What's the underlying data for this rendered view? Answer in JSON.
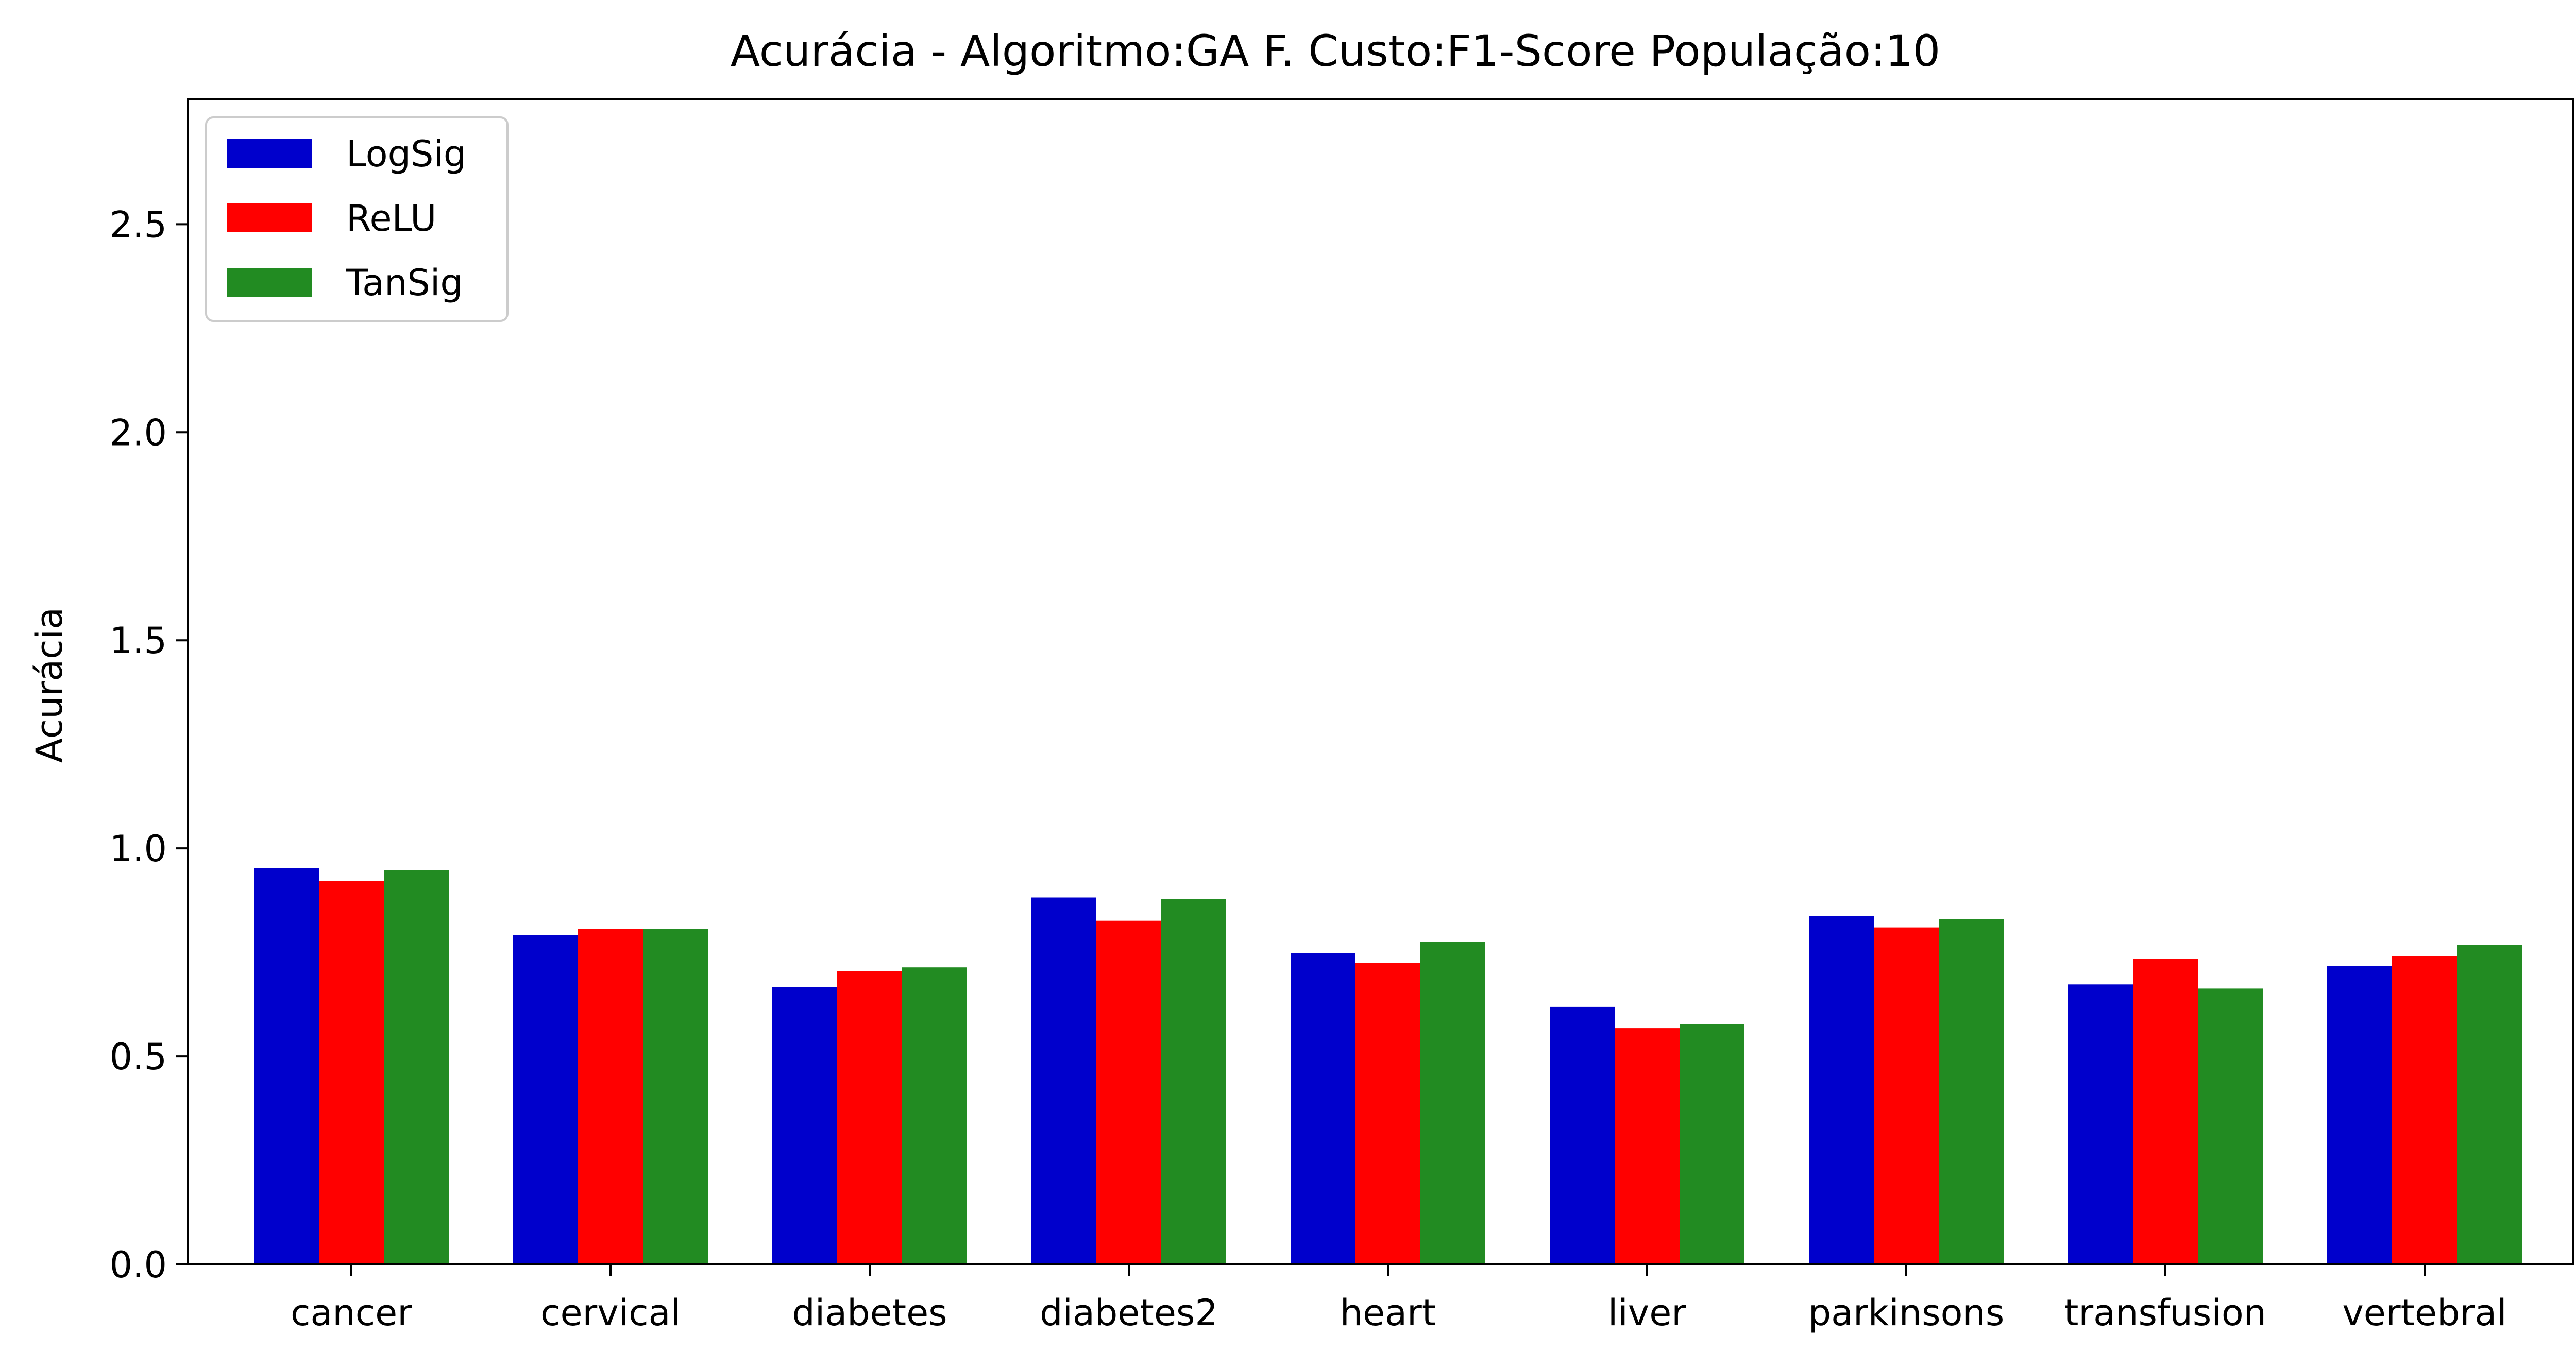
{
  "chart_data": {
    "type": "bar",
    "title": "Acurácia - Algoritmo:GA F. Custo:F1-Score População:10",
    "xlabel": "",
    "ylabel": "Acurácia",
    "categories": [
      "cancer",
      "cervical",
      "diabetes",
      "diabetes2",
      "heart",
      "liver",
      "parkinsons",
      "transfusion",
      "vertebral"
    ],
    "series": [
      {
        "name": "LogSig",
        "color": "#0000cc",
        "values": [
          0.952,
          0.792,
          0.666,
          0.882,
          0.748,
          0.619,
          0.837,
          0.673,
          0.718
        ]
      },
      {
        "name": "ReLU",
        "color": "#ff0000",
        "values": [
          0.922,
          0.806,
          0.705,
          0.826,
          0.725,
          0.568,
          0.81,
          0.735,
          0.741
        ]
      },
      {
        "name": "TanSig",
        "color": "#228b22",
        "values": [
          0.948,
          0.806,
          0.714,
          0.878,
          0.775,
          0.577,
          0.83,
          0.663,
          0.768
        ]
      }
    ],
    "ylim": [
      0,
      2.8
    ],
    "yticks": [
      0.0,
      0.5,
      1.0,
      1.5,
      2.0,
      2.5
    ],
    "ytick_labels": [
      "0.0",
      "0.5",
      "1.0",
      "1.5",
      "2.0",
      "2.5"
    ],
    "grid": false,
    "legend_position": "top-left"
  }
}
